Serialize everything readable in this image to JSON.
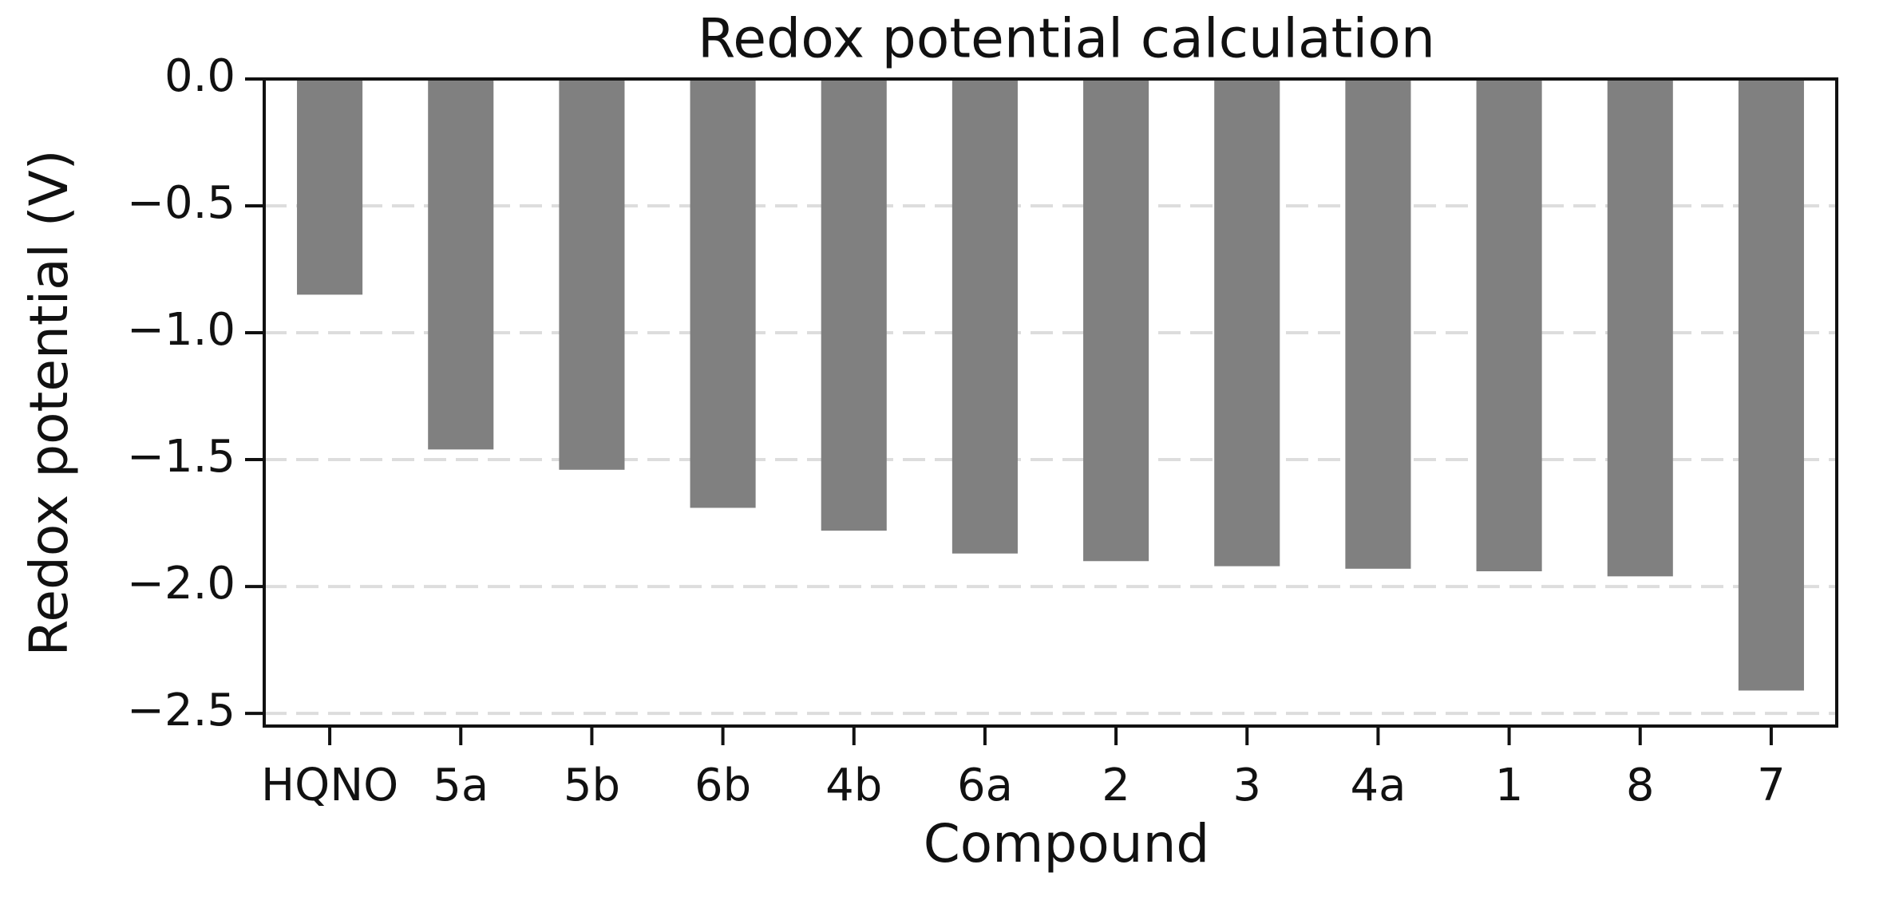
{
  "chart_data": {
    "type": "bar",
    "title": "Redox potential calculation",
    "x_label": "Compound",
    "y_label": "Redox potential (V)",
    "categories": [
      "HQNO",
      "5a",
      "5b",
      "6b",
      "4b",
      "6a",
      "2",
      "3",
      "4a",
      "1",
      "8",
      "7"
    ],
    "values": [
      -0.85,
      -1.46,
      -1.54,
      -1.69,
      -1.78,
      -1.87,
      -1.9,
      -1.92,
      -1.93,
      -1.94,
      -1.96,
      -2.41
    ],
    "color": "#808080",
    "ylim": [
      -2.55,
      0
    ],
    "yticks": [
      {
        "value": 0,
        "label": "0.0"
      },
      {
        "value": -0.5,
        "label": "−0.5"
      },
      {
        "value": -1,
        "label": "−1.0"
      },
      {
        "value": -1.5,
        "label": "−1.5"
      },
      {
        "value": -2,
        "label": "−2.0"
      },
      {
        "value": -2.5,
        "label": "−2.5"
      }
    ],
    "grid": true
  }
}
